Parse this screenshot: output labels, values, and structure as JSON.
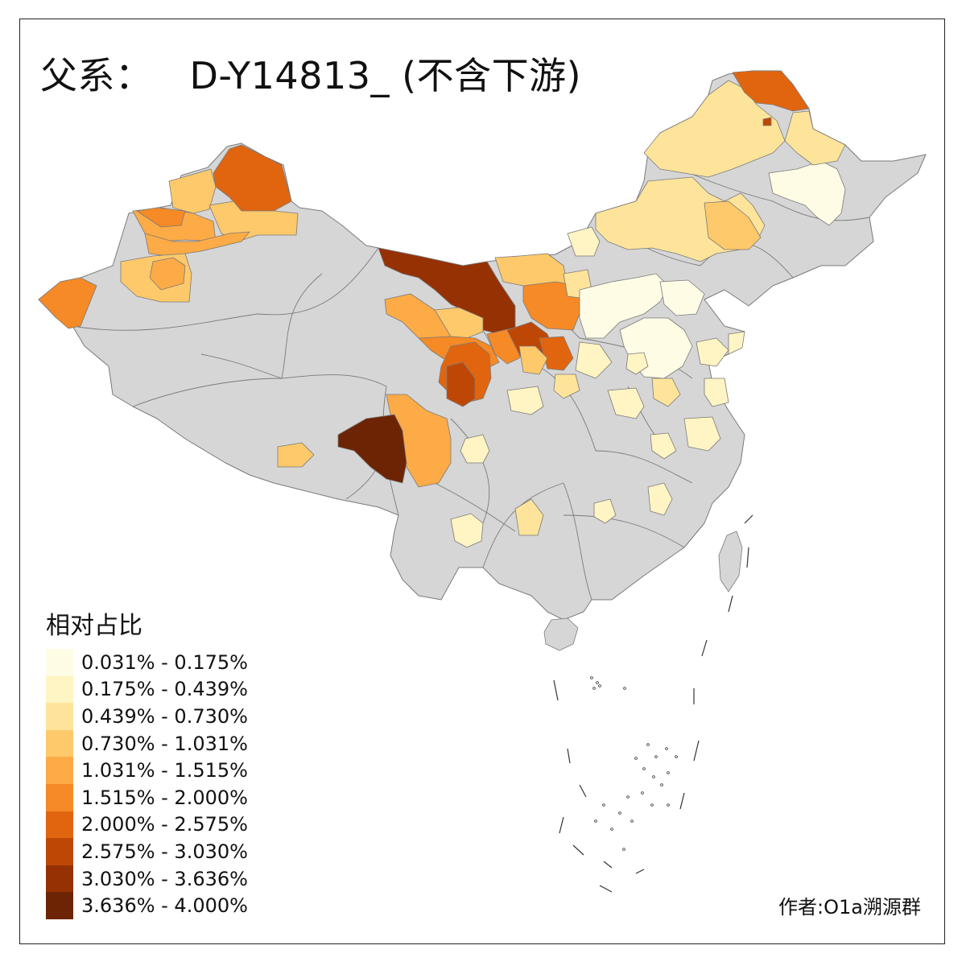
{
  "title": {
    "prefix": "父系：",
    "haplogroup": "D-Y14813_",
    "suffix": "(不含下游)"
  },
  "legend": {
    "title": "相对占比"
  },
  "author": "作者:O1a溯源群",
  "colors": {
    "no_data": "#d6d6d6",
    "border": "#7a7a7a",
    "frame": "#222222"
  },
  "chart_data": {
    "type": "choropleth",
    "title": "父系： D-Y14813_ (不含下游)",
    "legend_title": "相对占比",
    "legend_placement": "bottom-left",
    "classes": [
      {
        "label": "0.031% - 0.175%",
        "min": 0.031,
        "max": 0.175,
        "color": "#fffce6"
      },
      {
        "label": "0.175% - 0.439%",
        "min": 0.175,
        "max": 0.439,
        "color": "#fff4c3"
      },
      {
        "label": "0.439% - 0.730%",
        "min": 0.439,
        "max": 0.73,
        "color": "#fee49a"
      },
      {
        "label": "0.730% - 1.031%",
        "min": 0.73,
        "max": 1.031,
        "color": "#fec96a"
      },
      {
        "label": "1.031% - 1.515%",
        "min": 1.031,
        "max": 1.515,
        "color": "#fdab46"
      },
      {
        "label": "1.515% - 2.000%",
        "min": 1.515,
        "max": 2.0,
        "color": "#f58a26"
      },
      {
        "label": "2.000% - 2.575%",
        "min": 2.0,
        "max": 2.575,
        "color": "#e1650f"
      },
      {
        "label": "2.575% - 3.030%",
        "min": 2.575,
        "max": 3.03,
        "color": "#bf4706"
      },
      {
        "label": "3.030% - 3.636%",
        "min": 3.03,
        "max": 3.636,
        "color": "#963104"
      },
      {
        "label": "3.636% - 4.000%",
        "min": 3.636,
        "max": 4.0,
        "color": "#6c2405"
      }
    ]
  }
}
